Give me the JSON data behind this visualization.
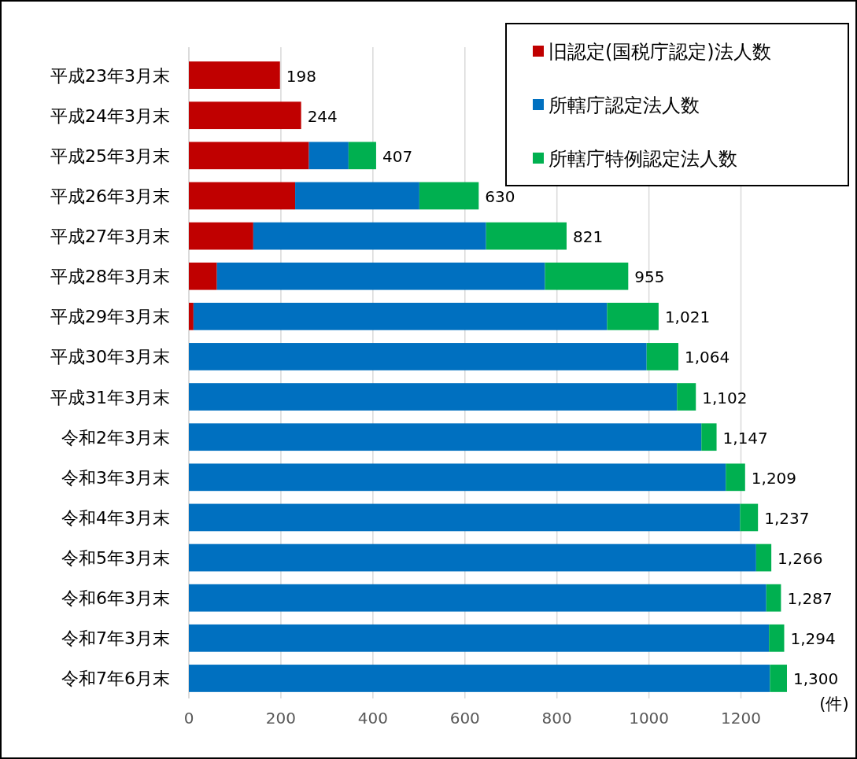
{
  "chart_data": {
    "type": "bar",
    "orientation": "horizontal",
    "stacked": true,
    "categories": [
      "平成23年3月末",
      "平成24年3月末",
      "平成25年3月末",
      "平成26年3月末",
      "平成27年3月末",
      "平成28年3月末",
      "平成29年3月末",
      "平成30年3月末",
      "平成31年3月末",
      "令和2年3月末",
      "令和3年3月末",
      "令和4年3月末",
      "令和5年3月末",
      "令和6年3月末",
      "令和7年3月末",
      "令和7年6月末"
    ],
    "series": [
      {
        "name": "旧認定(国税庁認定)法人数",
        "color": "#c00000",
        "values": [
          198,
          244,
          261,
          231,
          140,
          61,
          10,
          null,
          null,
          null,
          null,
          null,
          null,
          null,
          null,
          null
        ]
      },
      {
        "name": "所轄庁認定法人数",
        "color": "#0070c0",
        "values": [
          null,
          null,
          86,
          270,
          506,
          713,
          899,
          995,
          1061,
          1114,
          1167,
          1198,
          1233,
          1255,
          1261,
          1263
        ]
      },
      {
        "name": "所轄庁特例認定法人数",
        "color": "#00b050",
        "values": [
          null,
          null,
          60,
          129,
          175,
          181,
          112,
          69,
          41,
          33,
          42,
          39,
          33,
          32,
          33,
          37
        ]
      }
    ],
    "totals": [
      "198",
      "244",
      "407",
      "630",
      "821",
      "955",
      "1,021",
      "1,064",
      "1,102",
      "1,147",
      "1,209",
      "1,237",
      "1,266",
      "1,287",
      "1,294",
      "1,300"
    ],
    "xlim": [
      0,
      1300
    ],
    "xticks": [
      0,
      200,
      400,
      600,
      800,
      1000,
      1200
    ],
    "grid": "x",
    "legend": "top right",
    "annotations": [
      "(件)"
    ]
  }
}
